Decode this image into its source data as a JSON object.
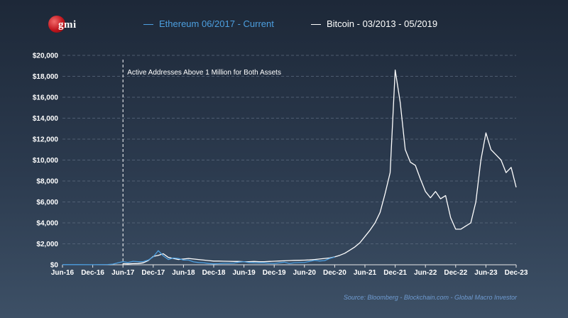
{
  "logo_text": "gmi",
  "source": "Source: Bloomberg - Blockchain.com - Global Macro Investor",
  "colors": {
    "ethereum": "#4d9fe0",
    "bitcoin": "#ffffff",
    "grid": "#5d6c80",
    "tick": "#ffffff"
  },
  "chart_data": {
    "type": "line",
    "title": "",
    "xlabel": "",
    "ylabel": "",
    "ylim": [
      0,
      20000
    ],
    "yticks": [
      0,
      2000,
      4000,
      6000,
      8000,
      10000,
      12000,
      14000,
      16000,
      18000,
      20000
    ],
    "ytick_labels": [
      "$0",
      "$2,000",
      "$4,000",
      "$6,000",
      "$8,000",
      "$10,000",
      "$12,000",
      "$14,000",
      "$16,000",
      "$18,000",
      "$20,000"
    ],
    "xlim": [
      "2016-06",
      "2023-12"
    ],
    "xticks": [
      "2016-06",
      "2016-12",
      "2017-06",
      "2017-12",
      "2018-06",
      "2018-12",
      "2019-06",
      "2019-12",
      "2020-06",
      "2020-12",
      "2021-06",
      "2021-12",
      "2022-06",
      "2022-12",
      "2023-06",
      "2023-12"
    ],
    "xtick_labels": [
      "Jun-16",
      "Dec-16",
      "Jun-17",
      "Dec-17",
      "Jun-18",
      "Dec-18",
      "Jun-19",
      "Dec-19",
      "Jun-20",
      "Dec-20",
      "Jun-21",
      "Dec-21",
      "Jun-22",
      "Dec-22",
      "Jun-23",
      "Dec-23"
    ],
    "grid": true,
    "legend_position": "top",
    "annotation": {
      "x": "2017-06",
      "text": "Active  Addresses Above 1 Million for Both Assets"
    },
    "series": [
      {
        "name": "Ethereum 06/2017 - Current",
        "color": "#4d9fe0",
        "points": [
          [
            "2016-06",
            14
          ],
          [
            "2016-09",
            12
          ],
          [
            "2016-12",
            8
          ],
          [
            "2017-03",
            30
          ],
          [
            "2017-04",
            60
          ],
          [
            "2017-05",
            180
          ],
          [
            "2017-06",
            300
          ],
          [
            "2017-07",
            220
          ],
          [
            "2017-08",
            330
          ],
          [
            "2017-09",
            300
          ],
          [
            "2017-10",
            300
          ],
          [
            "2017-11",
            450
          ],
          [
            "2017-12",
            750
          ],
          [
            "2018-01",
            1350
          ],
          [
            "2018-02",
            850
          ],
          [
            "2018-03",
            500
          ],
          [
            "2018-04",
            650
          ],
          [
            "2018-05",
            600
          ],
          [
            "2018-06",
            450
          ],
          [
            "2018-07",
            450
          ],
          [
            "2018-08",
            280
          ],
          [
            "2018-09",
            220
          ],
          [
            "2018-10",
            200
          ],
          [
            "2018-11",
            120
          ],
          [
            "2018-12",
            90
          ],
          [
            "2019-01",
            110
          ],
          [
            "2019-02",
            140
          ],
          [
            "2019-03",
            140
          ],
          [
            "2019-04",
            160
          ],
          [
            "2019-05",
            250
          ],
          [
            "2019-06",
            300
          ],
          [
            "2019-07",
            220
          ],
          [
            "2019-08",
            190
          ],
          [
            "2019-09",
            180
          ],
          [
            "2019-10",
            180
          ],
          [
            "2019-11",
            150
          ],
          [
            "2019-12",
            130
          ],
          [
            "2020-01",
            180
          ],
          [
            "2020-02",
            250
          ],
          [
            "2020-03",
            130
          ],
          [
            "2020-04",
            200
          ],
          [
            "2020-05",
            210
          ],
          [
            "2020-06",
            230
          ],
          [
            "2020-07",
            320
          ],
          [
            "2020-08",
            430
          ],
          [
            "2020-09",
            360
          ],
          [
            "2020-10",
            400
          ],
          [
            "2020-11",
            600
          ],
          [
            "2020-12",
            740
          ]
        ]
      },
      {
        "name": "Bitcoin - 03/2013 - 05/2019",
        "color": "#ffffff",
        "points": [
          [
            "2017-06",
            100
          ],
          [
            "2017-07",
            90
          ],
          [
            "2017-08",
            110
          ],
          [
            "2017-09",
            120
          ],
          [
            "2017-10",
            180
          ],
          [
            "2017-11",
            400
          ],
          [
            "2017-12",
            800
          ],
          [
            "2018-01",
            900
          ],
          [
            "2018-02",
            1050
          ],
          [
            "2018-03",
            700
          ],
          [
            "2018-04",
            600
          ],
          [
            "2018-05",
            500
          ],
          [
            "2018-06",
            550
          ],
          [
            "2018-07",
            600
          ],
          [
            "2018-08",
            550
          ],
          [
            "2018-09",
            500
          ],
          [
            "2018-10",
            450
          ],
          [
            "2018-11",
            400
          ],
          [
            "2018-12",
            350
          ],
          [
            "2019-01",
            350
          ],
          [
            "2019-02",
            340
          ],
          [
            "2019-03",
            330
          ],
          [
            "2019-04",
            320
          ],
          [
            "2019-05",
            320
          ],
          [
            "2019-06",
            300
          ],
          [
            "2019-07",
            300
          ],
          [
            "2019-08",
            320
          ],
          [
            "2019-09",
            300
          ],
          [
            "2019-10",
            300
          ],
          [
            "2019-11",
            320
          ],
          [
            "2019-12",
            340
          ],
          [
            "2020-01",
            360
          ],
          [
            "2020-02",
            380
          ],
          [
            "2020-03",
            400
          ],
          [
            "2020-04",
            420
          ],
          [
            "2020-05",
            430
          ],
          [
            "2020-06",
            440
          ],
          [
            "2020-07",
            460
          ],
          [
            "2020-08",
            500
          ],
          [
            "2020-09",
            550
          ],
          [
            "2020-10",
            600
          ],
          [
            "2020-11",
            650
          ],
          [
            "2020-12",
            750
          ],
          [
            "2021-01",
            900
          ],
          [
            "2021-02",
            1100
          ],
          [
            "2021-03",
            1400
          ],
          [
            "2021-04",
            1700
          ],
          [
            "2021-05",
            2100
          ],
          [
            "2021-06",
            2700
          ],
          [
            "2021-07",
            3300
          ],
          [
            "2021-08",
            4000
          ],
          [
            "2021-09",
            5000
          ],
          [
            "2021-10",
            6800
          ],
          [
            "2021-11",
            8800
          ],
          [
            "2021-12",
            18600
          ],
          [
            "2022-01",
            15500
          ],
          [
            "2022-02",
            11000
          ],
          [
            "2022-03",
            9800
          ],
          [
            "2022-04",
            9500
          ],
          [
            "2022-05",
            8200
          ],
          [
            "2022-06",
            7000
          ],
          [
            "2022-07",
            6400
          ],
          [
            "2022-08",
            7000
          ],
          [
            "2022-09",
            6300
          ],
          [
            "2022-10",
            6600
          ],
          [
            "2022-11",
            4500
          ],
          [
            "2022-12",
            3400
          ],
          [
            "2023-01",
            3400
          ],
          [
            "2023-02",
            3700
          ],
          [
            "2023-03",
            4000
          ],
          [
            "2023-04",
            6000
          ],
          [
            "2023-05",
            10000
          ],
          [
            "2023-06",
            12600
          ],
          [
            "2023-07",
            11000
          ],
          [
            "2023-08",
            10500
          ],
          [
            "2023-09",
            10000
          ],
          [
            "2023-10",
            8800
          ],
          [
            "2023-11",
            9300
          ],
          [
            "2023-12",
            7400
          ]
        ]
      }
    ]
  }
}
